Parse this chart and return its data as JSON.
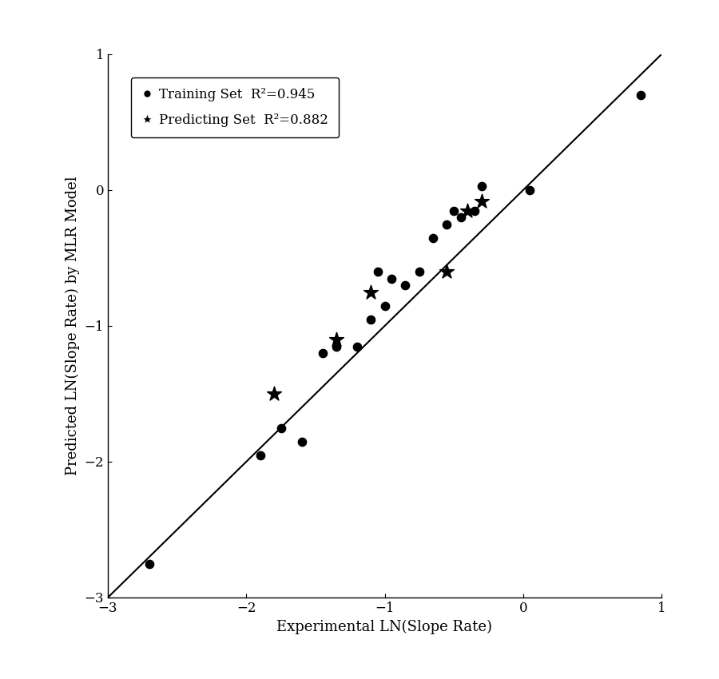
{
  "training_x": [
    -2.7,
    -1.9,
    -1.75,
    -1.6,
    -1.45,
    -1.35,
    -1.2,
    -1.1,
    -1.05,
    -1.0,
    -0.95,
    -0.85,
    -0.75,
    -0.65,
    -0.55,
    -0.5,
    -0.45,
    -0.35,
    -0.3,
    0.05,
    0.85
  ],
  "training_y": [
    -2.75,
    -1.95,
    -1.75,
    -1.85,
    -1.2,
    -1.15,
    -1.15,
    -0.95,
    -0.6,
    -0.85,
    -0.65,
    -0.7,
    -0.6,
    -0.35,
    -0.25,
    -0.15,
    -0.2,
    -0.15,
    0.03,
    0.0,
    0.7
  ],
  "predicting_x": [
    -1.8,
    -1.35,
    -1.1,
    -0.55,
    -0.4,
    -0.3
  ],
  "predicting_y": [
    -1.5,
    -1.1,
    -0.75,
    -0.6,
    -0.15,
    -0.08
  ],
  "line_x": [
    -3,
    1
  ],
  "line_y": [
    -3,
    1
  ],
  "xlim": [
    -3,
    1
  ],
  "ylim": [
    -3,
    1
  ],
  "xlabel": "Experimental LN(Slope Rate)",
  "ylabel": "Predicted LN(Slope Rate) by MLR Model",
  "legend_training": "Training Set  R²=0.945",
  "legend_predicting": "Predicting Set  R²=0.882",
  "xticks": [
    -3,
    -2,
    -1,
    0,
    1
  ],
  "yticks": [
    -3,
    -2,
    -1,
    0,
    1
  ],
  "background_color": "#ffffff",
  "line_color": "#000000",
  "marker_color": "#000000",
  "marker_size_train": 55,
  "marker_size_pred": 180,
  "font_size_label": 13,
  "font_size_tick": 12,
  "font_size_legend": 12
}
